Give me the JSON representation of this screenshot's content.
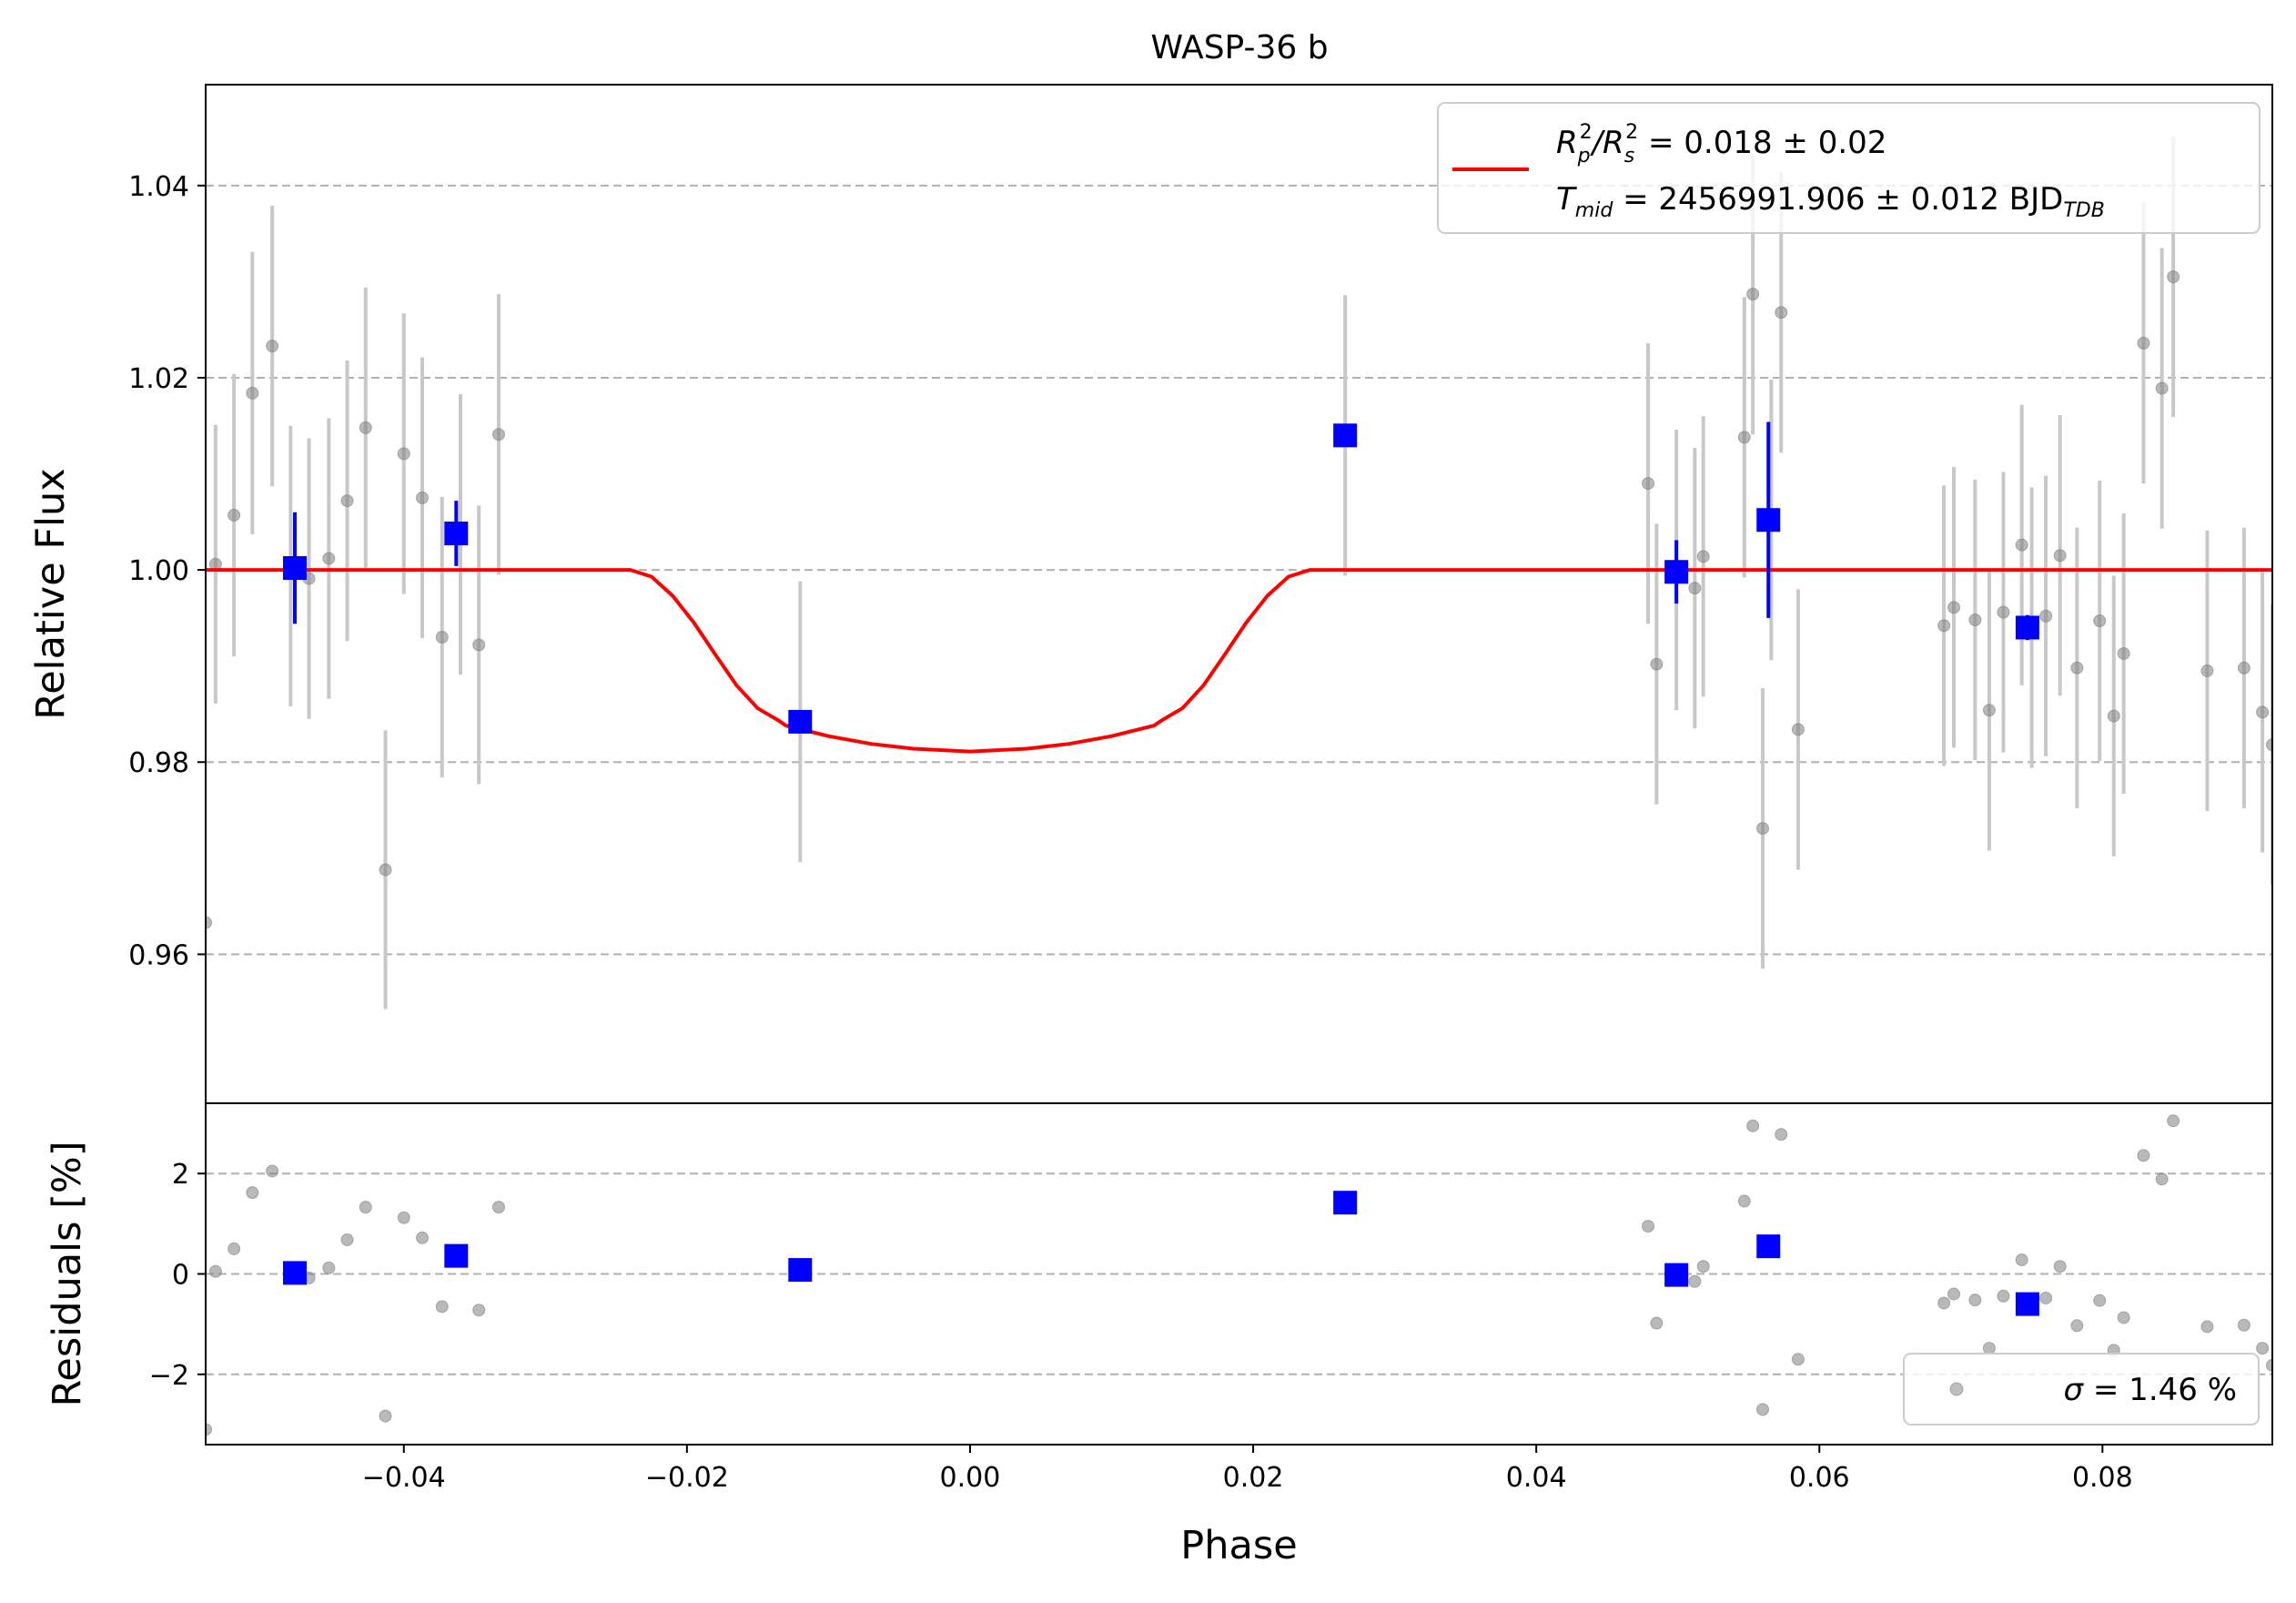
{
  "chart_data": [
    {
      "type": "scatter",
      "panel": "main",
      "title": "WASP-36 b",
      "ylabel": "Relative Flux",
      "xlim": [
        -0.054,
        0.092
      ],
      "ylim": [
        0.9445,
        1.0505
      ],
      "yticks": [
        0.96,
        0.98,
        1.0,
        1.02,
        1.04
      ],
      "ytick_labels": [
        "0.96",
        "0.98",
        "1.00",
        "1.02",
        "1.04"
      ],
      "grid": "horizontal dashed",
      "legend": {
        "placement": "top-right",
        "line1_pre": "R",
        "line1_sub1": "p",
        "line1_sup1": "2",
        "line1_slash": "/R",
        "line1_sub2": "s",
        "line1_sup2": "2",
        "line1_value": " = 0.018 ± 0.02",
        "line2_pre": "T",
        "line2_sub": "mid",
        "line2_value": " = 2456991.906 ± 0.012 BJD",
        "line2_unit_sub": "TDB"
      },
      "colors": {
        "model": "#ff0000",
        "binned": "#0000ff",
        "raw": "#808080",
        "raw_err": "#c8c8c8"
      },
      "raw_points": [
        {
          "x": -0.054,
          "y": 0.9633,
          "err": 0.0
        },
        {
          "x": -0.0533,
          "y": 1.0006,
          "err": 0.0145
        },
        {
          "x": -0.052,
          "y": 1.0057,
          "err": 0.0147
        },
        {
          "x": -0.0507,
          "y": 1.0184,
          "err": 0.0147
        },
        {
          "x": -0.0493,
          "y": 1.0233,
          "err": 0.0146
        },
        {
          "x": -0.048,
          "y": 1.0004,
          "err": 0.0146
        },
        {
          "x": -0.0467,
          "y": 0.9991,
          "err": 0.0146
        },
        {
          "x": -0.0453,
          "y": 1.0012,
          "err": 0.0146
        },
        {
          "x": -0.044,
          "y": 1.0072,
          "err": 0.0146
        },
        {
          "x": -0.0427,
          "y": 1.0148,
          "err": 0.0146
        },
        {
          "x": -0.0413,
          "y": 0.9688,
          "err": 0.0145
        },
        {
          "x": -0.04,
          "y": 1.0121,
          "err": 0.0146
        },
        {
          "x": -0.0387,
          "y": 1.0075,
          "err": 0.0146
        },
        {
          "x": -0.0373,
          "y": 0.993,
          "err": 0.0146
        },
        {
          "x": -0.036,
          "y": 1.0037,
          "err": 0.0146
        },
        {
          "x": -0.0347,
          "y": 0.9922,
          "err": 0.0145
        },
        {
          "x": -0.0333,
          "y": 1.0141,
          "err": 0.0146
        },
        {
          "x": -0.012,
          "y": 0.9842,
          "err": 0.0146
        },
        {
          "x": 0.0265,
          "y": 1.014,
          "err": 0.0146
        },
        {
          "x": 0.0479,
          "y": 1.009,
          "err": 0.0146
        },
        {
          "x": 0.0485,
          "y": 0.9902,
          "err": 0.0146
        },
        {
          "x": 0.0499,
          "y": 1.0,
          "err": 0.0146
        },
        {
          "x": 0.0512,
          "y": 0.9981,
          "err": 0.0146
        },
        {
          "x": 0.0518,
          "y": 1.0014,
          "err": 0.0146
        },
        {
          "x": 0.0547,
          "y": 1.0138,
          "err": 0.0146
        },
        {
          "x": 0.0553,
          "y": 1.0287,
          "err": 0.0146
        },
        {
          "x": 0.056,
          "y": 0.9731,
          "err": 0.0146
        },
        {
          "x": 0.0566,
          "y": 1.0052,
          "err": 0.0146
        },
        {
          "x": 0.0573,
          "y": 1.0268,
          "err": 0.0146
        },
        {
          "x": 0.0585,
          "y": 0.9834,
          "err": 0.0146
        },
        {
          "x": 0.0688,
          "y": 0.9942,
          "err": 0.0146
        },
        {
          "x": 0.0695,
          "y": 0.9961,
          "err": 0.0146
        },
        {
          "x": 0.071,
          "y": 0.9948,
          "err": 0.0146
        },
        {
          "x": 0.072,
          "y": 0.9854,
          "err": 0.0146
        },
        {
          "x": 0.073,
          "y": 0.9956,
          "err": 0.0146
        },
        {
          "x": 0.0743,
          "y": 1.0026,
          "err": 0.0146
        },
        {
          "x": 0.075,
          "y": 0.994,
          "err": 0.0146
        },
        {
          "x": 0.076,
          "y": 0.9952,
          "err": 0.0146
        },
        {
          "x": 0.077,
          "y": 1.0015,
          "err": 0.0146
        },
        {
          "x": 0.0782,
          "y": 0.9898,
          "err": 0.0146
        },
        {
          "x": 0.0798,
          "y": 0.9947,
          "err": 0.0146
        },
        {
          "x": 0.0808,
          "y": 0.9848,
          "err": 0.0146
        },
        {
          "x": 0.0815,
          "y": 0.9913,
          "err": 0.0146
        },
        {
          "x": 0.0829,
          "y": 1.0236,
          "err": 0.0146
        },
        {
          "x": 0.0842,
          "y": 1.0189,
          "err": 0.0146
        },
        {
          "x": 0.085,
          "y": 1.0305,
          "err": 0.0146
        },
        {
          "x": 0.0874,
          "y": 0.9895,
          "err": 0.0146
        },
        {
          "x": 0.09,
          "y": 0.9898,
          "err": 0.0146
        },
        {
          "x": 0.0913,
          "y": 0.9852,
          "err": 0.0146
        },
        {
          "x": 0.092,
          "y": 0.9818,
          "err": 0.0146
        }
      ],
      "binned_points": [
        {
          "x": -0.0477,
          "y": 1.0002,
          "err": 0.0058
        },
        {
          "x": -0.0363,
          "y": 1.0038,
          "err": 0.0034
        },
        {
          "x": -0.012,
          "y": 0.9842,
          "err": 0.0
        },
        {
          "x": 0.0265,
          "y": 1.014,
          "err": 0.0
        },
        {
          "x": 0.0499,
          "y": 0.9998,
          "err": 0.0033
        },
        {
          "x": 0.0564,
          "y": 1.0052,
          "err": 0.0102
        },
        {
          "x": 0.0747,
          "y": 0.994,
          "err": 0.0013
        }
      ],
      "model": {
        "x": [
          -0.054,
          -0.024,
          -0.0225,
          -0.021,
          -0.0195,
          -0.018,
          -0.0165,
          -0.015,
          -0.0135,
          -0.013,
          -0.01,
          -0.007,
          -0.004,
          0.0,
          0.004,
          0.007,
          0.01,
          0.013,
          0.0135,
          0.015,
          0.0165,
          0.018,
          0.0195,
          0.021,
          0.0225,
          0.024,
          0.092
        ],
        "y": [
          1.0,
          1.0,
          0.9993,
          0.9973,
          0.9945,
          0.9912,
          0.988,
          0.9856,
          0.9843,
          0.9838,
          0.9827,
          0.9819,
          0.9814,
          0.9811,
          0.9814,
          0.9819,
          0.9827,
          0.9838,
          0.9843,
          0.9856,
          0.988,
          0.9912,
          0.9945,
          0.9973,
          0.9993,
          1.0,
          1.0
        ]
      }
    },
    {
      "type": "scatter",
      "panel": "residuals",
      "xlabel": "Phase",
      "ylabel": "Residuals [%]",
      "xlim": [
        -0.054,
        0.092
      ],
      "ylim": [
        -3.4,
        3.4
      ],
      "xticks": [
        -0.04,
        -0.02,
        0.0,
        0.02,
        0.04,
        0.06,
        0.08
      ],
      "xtick_labels": [
        "−0.04",
        "−0.02",
        "0.00",
        "0.02",
        "0.04",
        "0.06",
        "0.08"
      ],
      "yticks": [
        -2,
        0,
        2
      ],
      "ytick_labels": [
        "−2",
        "0",
        "2"
      ],
      "grid": "horizontal dashed",
      "legend": {
        "placement": "bottom-right",
        "label_sigma": "σ",
        "label_value": " = 1.46 %"
      },
      "raw_points": [
        {
          "x": -0.054,
          "y": -3.1
        },
        {
          "x": -0.0533,
          "y": 0.05
        },
        {
          "x": -0.052,
          "y": 0.5
        },
        {
          "x": -0.0507,
          "y": 1.62
        },
        {
          "x": -0.0493,
          "y": 2.05
        },
        {
          "x": -0.048,
          "y": 0.02
        },
        {
          "x": -0.0467,
          "y": -0.08
        },
        {
          "x": -0.0453,
          "y": 0.12
        },
        {
          "x": -0.044,
          "y": 0.68
        },
        {
          "x": -0.0427,
          "y": 1.33
        },
        {
          "x": -0.0413,
          "y": -2.83
        },
        {
          "x": -0.04,
          "y": 1.12
        },
        {
          "x": -0.0387,
          "y": 0.72
        },
        {
          "x": -0.0373,
          "y": -0.65
        },
        {
          "x": -0.036,
          "y": 0.35
        },
        {
          "x": -0.0347,
          "y": -0.72
        },
        {
          "x": -0.0333,
          "y": 1.33
        },
        {
          "x": 0.0479,
          "y": 0.95
        },
        {
          "x": 0.0485,
          "y": -0.98
        },
        {
          "x": 0.0512,
          "y": -0.15
        },
        {
          "x": 0.0518,
          "y": 0.15
        },
        {
          "x": 0.0547,
          "y": 1.45
        },
        {
          "x": 0.0553,
          "y": 2.95
        },
        {
          "x": 0.056,
          "y": -2.7
        },
        {
          "x": 0.0573,
          "y": 2.78
        },
        {
          "x": 0.0585,
          "y": -1.7
        },
        {
          "x": 0.0688,
          "y": -0.58
        },
        {
          "x": 0.0695,
          "y": -0.4
        },
        {
          "x": 0.071,
          "y": -0.52
        },
        {
          "x": 0.072,
          "y": -1.48
        },
        {
          "x": 0.073,
          "y": -0.44
        },
        {
          "x": 0.0743,
          "y": 0.28
        },
        {
          "x": 0.076,
          "y": -0.48
        },
        {
          "x": 0.077,
          "y": 0.15
        },
        {
          "x": 0.0782,
          "y": -1.03
        },
        {
          "x": 0.0798,
          "y": -0.53
        },
        {
          "x": 0.0808,
          "y": -1.52
        },
        {
          "x": 0.0815,
          "y": -0.87
        },
        {
          "x": 0.0829,
          "y": 2.36
        },
        {
          "x": 0.0842,
          "y": 1.89
        },
        {
          "x": 0.085,
          "y": 3.05
        },
        {
          "x": 0.0874,
          "y": -1.05
        },
        {
          "x": 0.09,
          "y": -1.02
        },
        {
          "x": 0.0913,
          "y": -1.48
        },
        {
          "x": 0.092,
          "y": -1.82
        }
      ],
      "binned_points": [
        {
          "x": -0.0477,
          "y": 0.02
        },
        {
          "x": -0.0363,
          "y": 0.36
        },
        {
          "x": -0.012,
          "y": 0.08
        },
        {
          "x": 0.0265,
          "y": 1.42
        },
        {
          "x": 0.0499,
          "y": -0.02
        },
        {
          "x": 0.0564,
          "y": 0.55
        },
        {
          "x": 0.0747,
          "y": -0.6
        }
      ]
    }
  ]
}
